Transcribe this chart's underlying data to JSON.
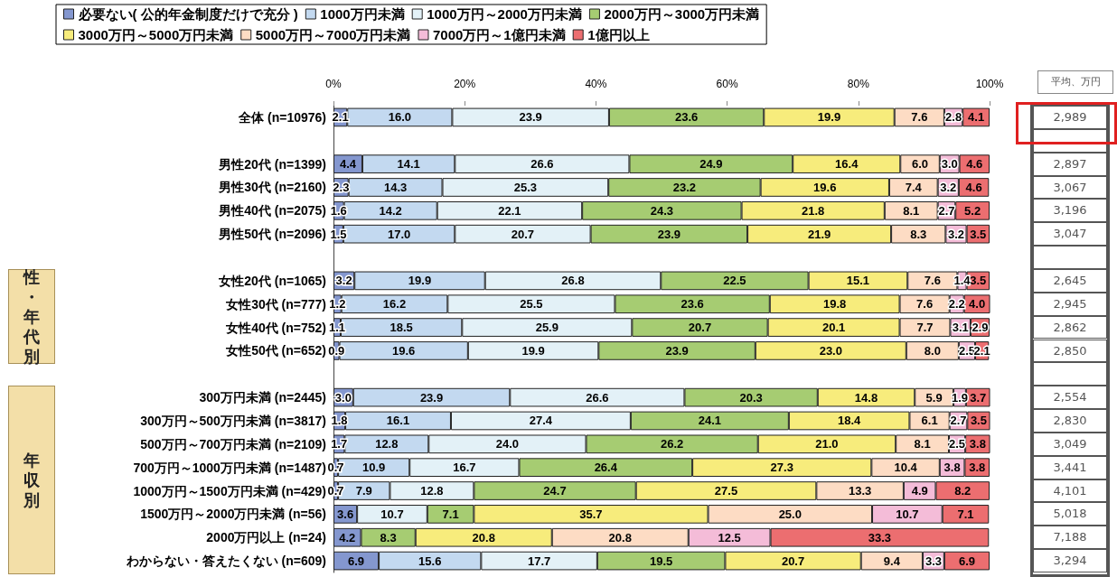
{
  "chart_data": [
    {
      "type": "bar",
      "orientation": "horizontal",
      "stacked": true,
      "legend": "top left",
      "grid": false,
      "categories": [
        "全体 (n=10976)",
        null,
        "男性20代 (n=1399)",
        "男性30代 (n=2160)",
        "男性40代 (n=2075)",
        "男性50代 (n=2096)",
        null,
        "女性20代 (n=1065)",
        "女性30代 (n=777)",
        "女性40代 (n=752)",
        "女性50代 (n=652)",
        null,
        "300万円未満 (n=2445)",
        "300万円～500万円未満 (n=3817)",
        "500万円～700万円未満 (n=2109)",
        "700万円～1000万円未満 (n=1487)",
        "1000万円～1500万円未満 (n=429)",
        "1500万円～2000万円未満 (n=56)",
        "2000万円以上 (n=24)",
        "わからない・答えたくない (n=609)"
      ],
      "xlim": [
        0,
        100
      ],
      "xticks": [
        {
          "value": 0,
          "label": "0%"
        },
        {
          "value": 20,
          "label": "20%"
        },
        {
          "value": 40,
          "label": "40%"
        },
        {
          "value": 60,
          "label": "60%"
        },
        {
          "value": 80,
          "label": "80%"
        },
        {
          "value": 100,
          "label": "100%"
        }
      ],
      "annotations": [
        "性・年代別",
        "年収別"
      ],
      "series": [
        {
          "name": "必要ない( 公的年金制度だけで充分 )",
          "color": "#8497cf",
          "values": [
            2.1,
            null,
            4.4,
            2.3,
            1.6,
            1.5,
            null,
            3.2,
            1.2,
            1.1,
            0.9,
            null,
            3.0,
            1.8,
            1.7,
            0.7,
            0.7,
            3.6,
            4.2,
            6.9
          ],
          "value_labels": [
            "2.1",
            null,
            "4.4",
            "2.3",
            "1.6",
            "1.5",
            null,
            "3.2",
            "1.2",
            "1.1",
            "0.9",
            null,
            "3.0",
            "1.8",
            "1.7",
            "0.7",
            "0.7",
            "3.6",
            "4.2",
            "6.9"
          ]
        },
        {
          "name": "1000万円未満",
          "color": "#c3d9f0",
          "values": [
            16.0,
            null,
            14.1,
            14.3,
            14.2,
            17.0,
            null,
            19.9,
            16.2,
            18.5,
            19.6,
            null,
            23.9,
            16.1,
            12.8,
            10.9,
            7.9,
            null,
            null,
            15.6
          ],
          "value_labels": [
            "16.0",
            null,
            "14.1",
            "14.3",
            "14.2",
            "17.0",
            null,
            "19.9",
            "16.2",
            "18.5",
            "19.6",
            null,
            "23.9",
            "16.1",
            "12.8",
            "10.9",
            "7.9",
            null,
            null,
            "15.6"
          ]
        },
        {
          "name": "1000万円～2000万円未満",
          "color": "#e3f1f7",
          "values": [
            23.9,
            null,
            26.6,
            25.3,
            22.1,
            20.7,
            null,
            26.8,
            25.5,
            25.9,
            19.9,
            null,
            26.6,
            27.4,
            24.0,
            16.7,
            12.8,
            10.7,
            null,
            17.7
          ],
          "value_labels": [
            "23.9",
            null,
            "26.6",
            "25.3",
            "22.1",
            "20.7",
            null,
            "26.8",
            "25.5",
            "25.9",
            "19.9",
            null,
            "26.6",
            "27.4",
            "24.0",
            "16.7",
            "12.8",
            "10.7",
            null,
            "17.7"
          ]
        },
        {
          "name": "2000万円～3000万円未満",
          "color": "#a6cc72",
          "values": [
            23.6,
            null,
            24.9,
            23.2,
            24.3,
            23.9,
            null,
            22.5,
            23.6,
            20.7,
            23.9,
            null,
            20.3,
            24.1,
            26.2,
            26.4,
            24.7,
            7.1,
            8.3,
            19.5
          ],
          "value_labels": [
            "23.6",
            null,
            "24.9",
            "23.2",
            "24.3",
            "23.9",
            null,
            "22.5",
            "23.6",
            "20.7",
            "23.9",
            null,
            "20.3",
            "24.1",
            "26.2",
            "26.4",
            "24.7",
            "7.1",
            "8.3",
            "19.5"
          ]
        },
        {
          "name": "3000万円～5000万円未満",
          "color": "#f7ec7c",
          "values": [
            19.9,
            null,
            16.4,
            19.6,
            21.8,
            21.9,
            null,
            15.1,
            19.8,
            20.1,
            23.0,
            null,
            14.8,
            18.4,
            21.0,
            27.3,
            27.5,
            35.7,
            20.8,
            20.7
          ],
          "value_labels": [
            "19.9",
            null,
            "16.4",
            "19.6",
            "21.8",
            "21.9",
            null,
            "15.1",
            "19.8",
            "20.1",
            "23.0",
            null,
            "14.8",
            "18.4",
            "21.0",
            "27.3",
            "27.5",
            "35.7",
            "20.8",
            "20.7"
          ]
        },
        {
          "name": "5000万円～7000万円未満",
          "color": "#fddcc4",
          "values": [
            7.6,
            null,
            6.0,
            7.4,
            8.1,
            8.3,
            null,
            7.6,
            7.6,
            7.7,
            8.0,
            null,
            5.9,
            6.1,
            8.1,
            10.4,
            13.3,
            25.0,
            20.8,
            9.4
          ],
          "value_labels": [
            "7.6",
            null,
            "6.0",
            "7.4",
            "8.1",
            "8.3",
            null,
            "7.6",
            "7.6",
            "7.7",
            "8.0",
            null,
            "5.9",
            "6.1",
            "8.1",
            "10.4",
            "13.3",
            "25.0",
            "20.8",
            "9.4"
          ]
        },
        {
          "name": "7000万円～1億円未満",
          "color": "#f4bcd8",
          "values": [
            2.8,
            null,
            3.0,
            3.2,
            2.7,
            3.2,
            null,
            1.4,
            2.2,
            3.1,
            2.5,
            null,
            1.9,
            2.7,
            2.5,
            3.8,
            4.9,
            10.7,
            12.5,
            3.3
          ],
          "value_labels": [
            "2.8",
            null,
            "3.0",
            "3.2",
            "2.7",
            "3.2",
            null,
            "1.4",
            "2.2",
            "3.1",
            "2.5",
            null,
            "1.9",
            "2.7",
            "2.5",
            "3.8",
            "4.9",
            "10.7",
            "12.5",
            "3.3"
          ]
        },
        {
          "name": "1億円以上",
          "color": "#ec6e70",
          "values": [
            4.1,
            null,
            4.6,
            4.6,
            5.2,
            3.5,
            null,
            3.5,
            4.0,
            2.9,
            2.1,
            null,
            3.7,
            3.5,
            3.8,
            3.8,
            8.2,
            7.1,
            33.3,
            6.9
          ],
          "value_labels": [
            "4.1",
            null,
            "4.6",
            "4.6",
            "5.2",
            "3.5",
            null,
            "3.5",
            "4.0",
            "2.9",
            "2.1",
            null,
            "3.7",
            "3.5",
            "3.8",
            "3.8",
            "8.2",
            "7.1",
            "33.3",
            "6.9"
          ]
        }
      ]
    },
    {
      "type": "other",
      "title": "平均、万円",
      "categories": [
        "2,989",
        null,
        "2,897",
        "3,067",
        "3,196",
        "3,047",
        null,
        "2,645",
        "2,945",
        "2,862",
        "2,850",
        null,
        "2,554",
        "2,830",
        "3,049",
        "3,441",
        "4,101",
        "5,018",
        "7,188",
        "3,294"
      ]
    }
  ]
}
